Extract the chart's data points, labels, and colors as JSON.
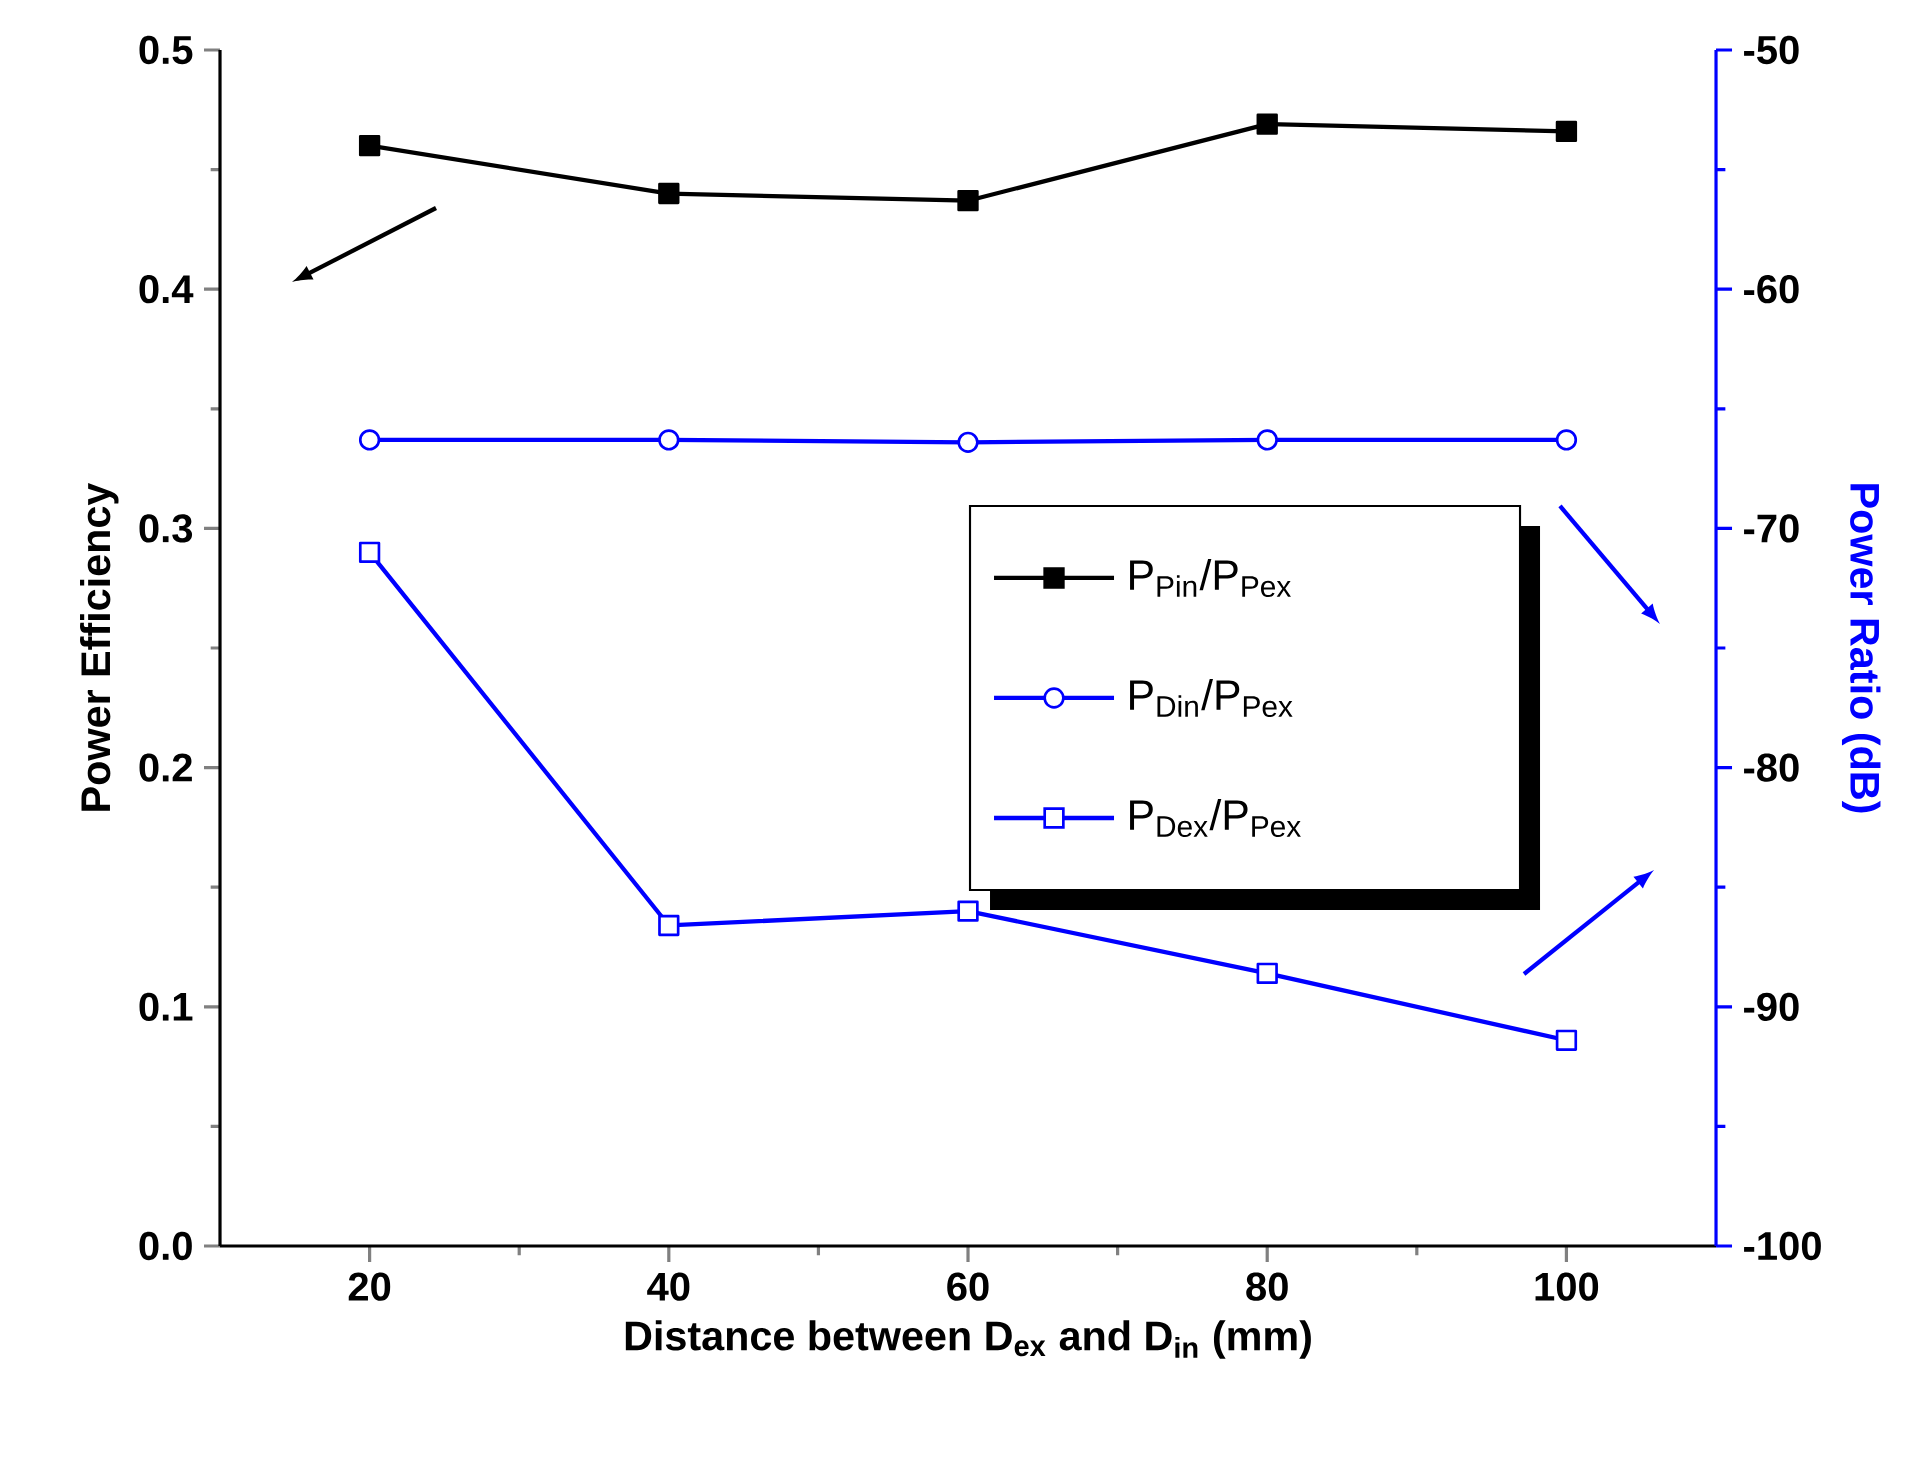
{
  "chart_data": {
    "type": "line",
    "xlabel": "Distance between D$_{ex}$ and D$_{in}$ (mm)",
    "ylabel": "Power Efficiency",
    "y2label": "Power Ratio (dB)",
    "x": [
      20,
      40,
      60,
      80,
      100
    ],
    "xlim": [
      10,
      110
    ],
    "xticks": [
      20,
      40,
      60,
      80,
      100
    ],
    "ylim": [
      0,
      0.5
    ],
    "yticks": [
      {
        "value": 0,
        "label": "0.0"
      },
      0.1,
      0.2,
      0.3,
      0.4,
      0.5
    ],
    "y2lim": [
      -100,
      -50
    ],
    "y2ticks": [
      -100,
      -90,
      -80,
      -70,
      -60,
      -50
    ],
    "legend": "right",
    "grid": false,
    "line_style": "solid",
    "series": [
      {
        "name": "P$_{Pin}$/P$_{Pex}$",
        "color": "#000000",
        "marker": "square",
        "values": [
          0.46,
          0.44,
          0.437,
          0.469,
          0.466
        ]
      },
      {
        "name": "P$_{Din}$/P$_{Pex}$",
        "color": "#0000ff",
        "marker": "circle",
        "axis": "y2",
        "values": [
          -66.3,
          -66.3,
          -66.4,
          -66.3,
          -66.3
        ]
      },
      {
        "name": "P$_{Dex}$/P$_{Pex}$",
        "color": "#0000ff",
        "marker": "square",
        "axis": "y2",
        "values": [
          -71.0,
          -86.6,
          -86.0,
          -88.6,
          -91.4
        ]
      }
    ]
  }
}
